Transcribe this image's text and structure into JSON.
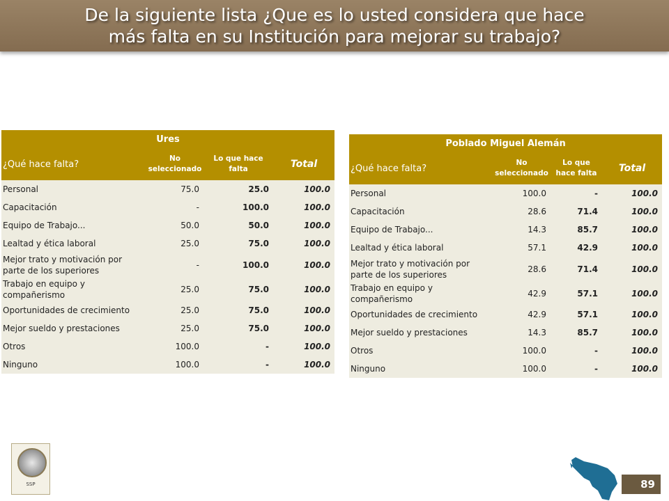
{
  "title": {
    "line1": "De la siguiente lista ¿Que es lo usted considera que hace",
    "line2": "más falta en su Institución para mejorar su trabajo?"
  },
  "tables": [
    {
      "location": "Ures",
      "question_header": "¿Qué hace falta?",
      "col_no_sel": "No seleccionado",
      "col_falta": "Lo que hace falta",
      "col_total": "Total",
      "rows": [
        {
          "label": "Personal",
          "no_sel": "75.0",
          "falta": "25.0",
          "total": "100.0"
        },
        {
          "label": "Capacitación",
          "no_sel": "-",
          "falta": "100.0",
          "total": "100.0"
        },
        {
          "label": "Equipo de Trabajo...",
          "no_sel": "50.0",
          "falta": "50.0",
          "total": "100.0"
        },
        {
          "label": "Lealtad y ética laboral",
          "no_sel": "25.0",
          "falta": "75.0",
          "total": "100.0"
        },
        {
          "label": "Mejor trato y motivación por parte de los superiores",
          "no_sel": "-",
          "falta": "100.0",
          "total": "100.0"
        },
        {
          "label": "Trabajo en equipo y compañerismo",
          "no_sel": "25.0",
          "falta": "75.0",
          "total": "100.0"
        },
        {
          "label": "Oportunidades de crecimiento",
          "no_sel": "25.0",
          "falta": "75.0",
          "total": "100.0"
        },
        {
          "label": "Mejor sueldo y prestaciones",
          "no_sel": "25.0",
          "falta": "75.0",
          "total": "100.0"
        },
        {
          "label": "Otros",
          "no_sel": "100.0",
          "falta": "-",
          "total": "100.0"
        },
        {
          "label": "Ninguno",
          "no_sel": "100.0",
          "falta": "-",
          "total": "100.0"
        }
      ]
    },
    {
      "location": "Poblado Miguel Alemán",
      "question_header": "¿Qué hace falta?",
      "col_no_sel": "No seleccionado",
      "col_falta": "Lo que hace falta",
      "col_total": "Total",
      "rows": [
        {
          "label": "Personal",
          "no_sel": "100.0",
          "falta": "-",
          "total": "100.0"
        },
        {
          "label": "Capacitación",
          "no_sel": "28.6",
          "falta": "71.4",
          "total": "100.0"
        },
        {
          "label": "Equipo de Trabajo...",
          "no_sel": "14.3",
          "falta": "85.7",
          "total": "100.0"
        },
        {
          "label": "Lealtad y ética laboral",
          "no_sel": "57.1",
          "falta": "42.9",
          "total": "100.0"
        },
        {
          "label": "Mejor trato y motivación por parte de los superiores",
          "no_sel": "28.6",
          "falta": "71.4",
          "total": "100.0"
        },
        {
          "label": "Trabajo en equipo y compañerismo",
          "no_sel": "42.9",
          "falta": "57.1",
          "total": "100.0"
        },
        {
          "label": "Oportunidades de crecimiento",
          "no_sel": "42.9",
          "falta": "57.1",
          "total": "100.0"
        },
        {
          "label": "Mejor sueldo y prestaciones",
          "no_sel": "14.3",
          "falta": "85.7",
          "total": "100.0"
        },
        {
          "label": "Otros",
          "no_sel": "100.0",
          "falta": "-",
          "total": "100.0"
        },
        {
          "label": "Ninguno",
          "no_sel": "100.0",
          "falta": "-",
          "total": "100.0"
        }
      ]
    }
  ],
  "footer": {
    "logo_label": "SSP",
    "page_number": "89"
  },
  "colors": {
    "title_bar": "#8c7457",
    "header_band": "#b48f00",
    "row_bg": "#eeece0",
    "map": "#1f6e94",
    "page_box": "#6b5a40"
  },
  "icons": {
    "logo": "seal-emblem-icon",
    "map": "state-map-icon"
  }
}
